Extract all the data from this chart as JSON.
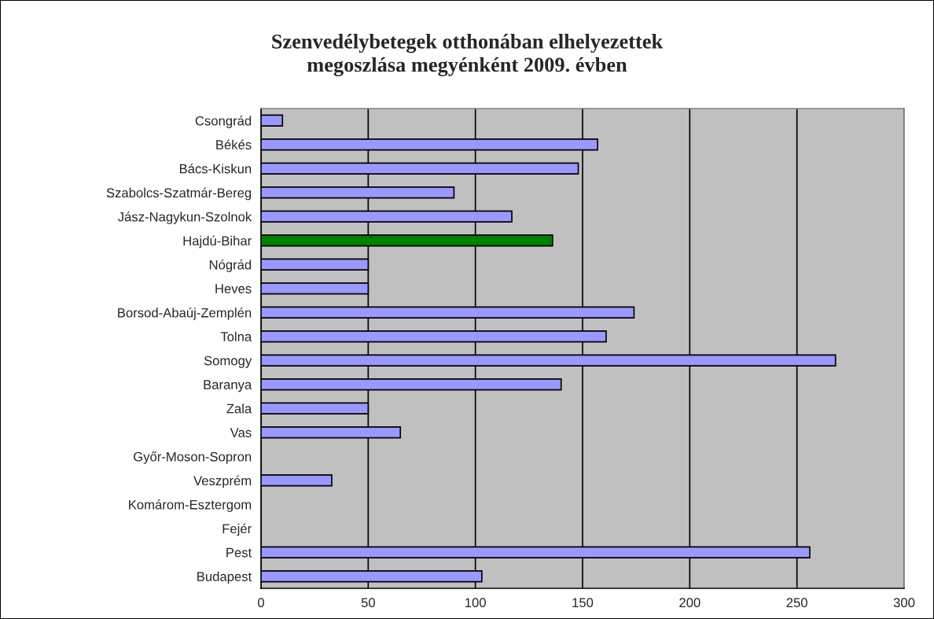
{
  "chart_data": {
    "type": "bar",
    "orientation": "horizontal",
    "title": "Szenvedélybetegek otthonában elhelyezettek\nmegoszlása megyénként 2009. évben",
    "categories": [
      "Csongrád",
      "Békés",
      "Bács-Kiskun",
      "Szabolcs-Szatmár-Bereg",
      "Jász-Nagykun-Szolnok",
      "Hajdú-Bihar",
      "Nógrád",
      "Heves",
      "Borsod-Abaúj-Zemplén",
      "Tolna",
      "Somogy",
      "Baranya",
      "Zala",
      "Vas",
      "Győr-Moson-Sopron",
      "Veszprém",
      "Komárom-Esztergom",
      "Fejér",
      "Pest",
      "Budapest"
    ],
    "values": [
      10,
      157,
      148,
      90,
      117,
      136,
      50,
      50,
      174,
      161,
      268,
      140,
      50,
      65,
      0,
      33,
      0,
      0,
      256,
      103
    ],
    "colors": [
      "#9999ff",
      "#9999ff",
      "#9999ff",
      "#9999ff",
      "#9999ff",
      "#008000",
      "#9999ff",
      "#9999ff",
      "#9999ff",
      "#9999ff",
      "#9999ff",
      "#9999ff",
      "#9999ff",
      "#9999ff",
      "#9999ff",
      "#9999ff",
      "#9999ff",
      "#9999ff",
      "#9999ff",
      "#9999ff"
    ],
    "xlim": [
      0,
      300
    ],
    "xticks": [
      0,
      50,
      100,
      150,
      200,
      250,
      300
    ],
    "grid": "x",
    "legend": false
  }
}
